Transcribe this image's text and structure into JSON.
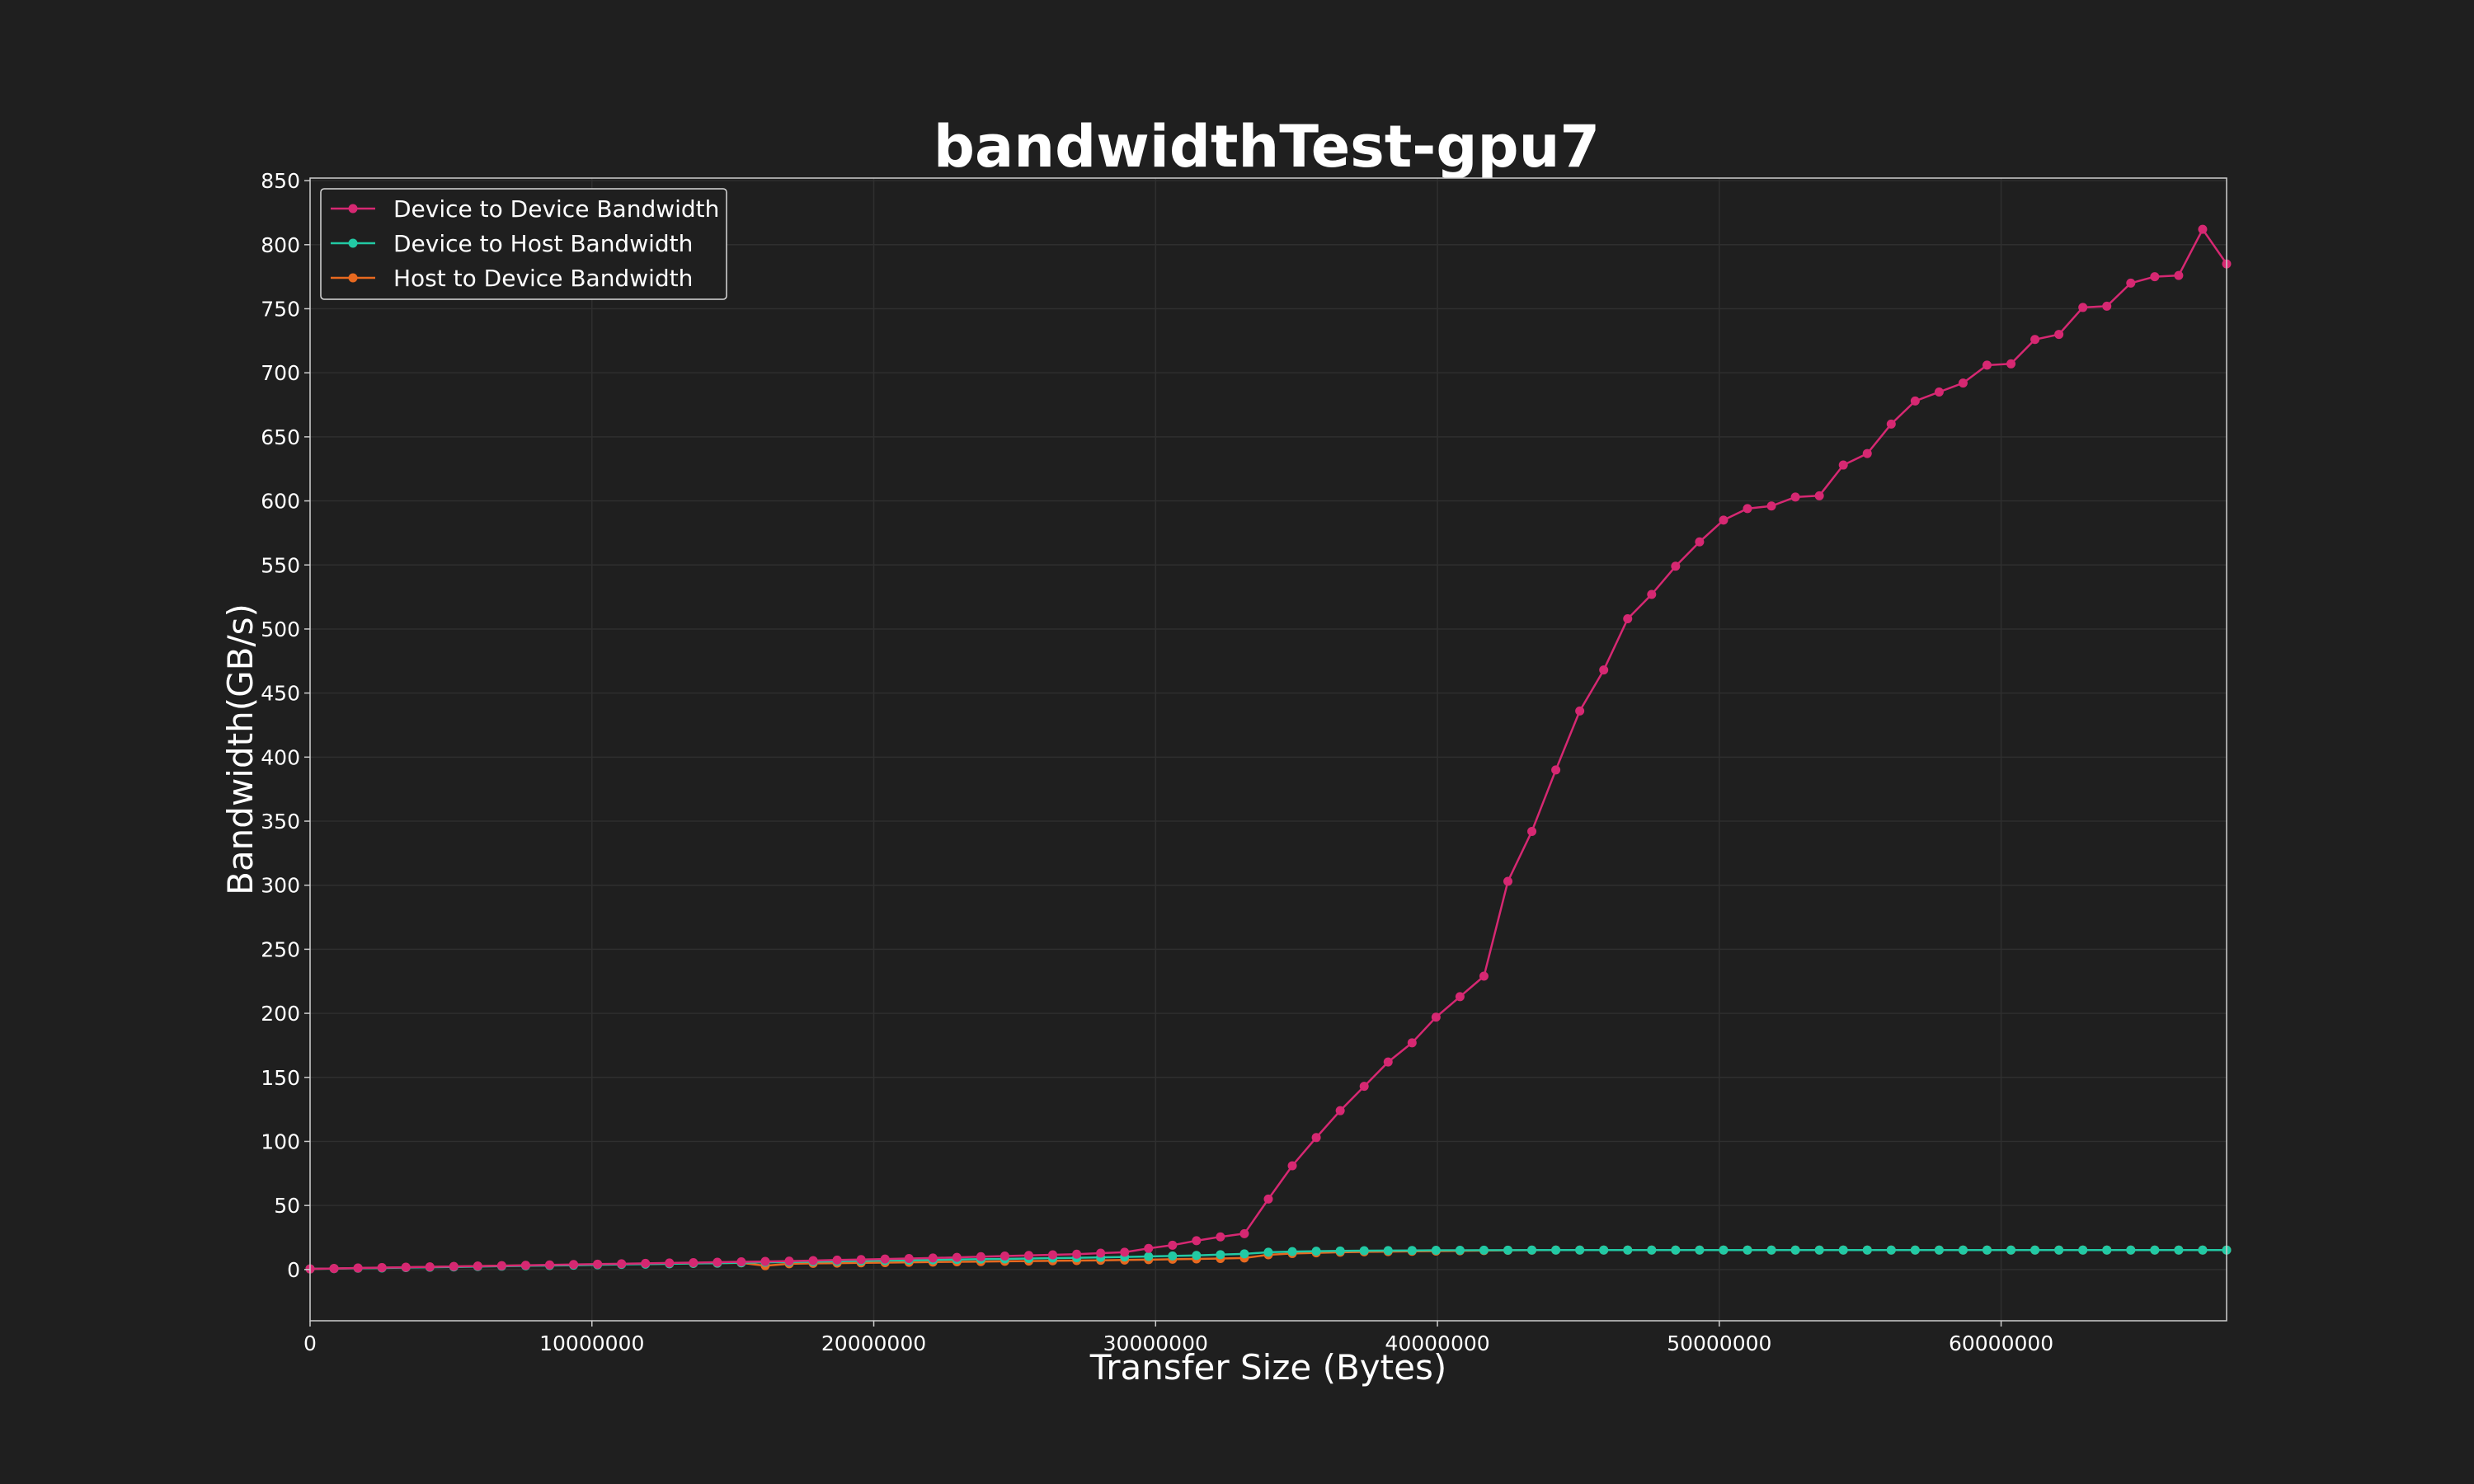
{
  "chart_data": {
    "type": "line",
    "title": "bandwidthTest-gpu7",
    "xlabel": "Transfer Size (Bytes)",
    "ylabel": "Bandwidth(GB/s)",
    "xlim": [
      0,
      68000000
    ],
    "ylim": [
      -40,
      852
    ],
    "x_ticks": [
      0,
      10000000,
      20000000,
      30000000,
      40000000,
      50000000,
      60000000
    ],
    "x_tick_labels": [
      "0",
      "10000000",
      "20000000",
      "30000000",
      "40000000",
      "50000000",
      "60000000"
    ],
    "y_ticks": [
      0,
      50,
      100,
      150,
      200,
      250,
      300,
      350,
      400,
      450,
      500,
      550,
      600,
      650,
      700,
      750,
      800,
      850
    ],
    "y_tick_labels": [
      "0",
      "50",
      "100",
      "150",
      "200",
      "250",
      "300",
      "350",
      "400",
      "450",
      "500",
      "550",
      "600",
      "650",
      "700",
      "750",
      "800",
      "850"
    ],
    "grid": true,
    "legend_position": "top-left",
    "x": [
      0,
      850000,
      1700000,
      2550000,
      3400000,
      4250000,
      5100000,
      5950000,
      6800000,
      7650000,
      8500000,
      9350000,
      10200000,
      11050000,
      11900000,
      12750000,
      13600000,
      14450000,
      15300000,
      16150000,
      17000000,
      17850000,
      18700000,
      19550000,
      20400000,
      21250000,
      22100000,
      22950000,
      23800000,
      24650000,
      25500000,
      26350000,
      27200000,
      28050000,
      28900000,
      29750000,
      30600000,
      31450000,
      32300000,
      33150000,
      34000000,
      34850000,
      35700000,
      36550000,
      37400000,
      38250000,
      39100000,
      39950000,
      40800000,
      41650000,
      42500000,
      43350000,
      44200000,
      45050000,
      45900000,
      46750000,
      47600000,
      48450000,
      49300000,
      50150000,
      51000000,
      51850000,
      52700000,
      53550000,
      54400000,
      55250000,
      56100000,
      56950000,
      57800000,
      58650000,
      59500000,
      60350000,
      61200000,
      62050000,
      62900000,
      63750000,
      64600000,
      65450000,
      66300000,
      67150000,
      68000000
    ],
    "series": [
      {
        "name": "Device to Device Bandwidth",
        "color": "#d62872",
        "values": [
          0.5,
          0.8,
          1.2,
          1.5,
          1.8,
          2.1,
          2.4,
          2.7,
          3.0,
          3.3,
          3.6,
          3.9,
          4.2,
          4.5,
          4.8,
          5.1,
          5.4,
          5.7,
          6.0,
          6.3,
          6.6,
          7.0,
          7.4,
          7.8,
          8.2,
          8.6,
          9.0,
          9.5,
          10.0,
          10.5,
          11.0,
          11.5,
          12.0,
          12.8,
          13.5,
          16.5,
          19.0,
          22.5,
          25.5,
          28.0,
          55.0,
          81.0,
          103.0,
          124.0,
          143.0,
          162.0,
          177.0,
          197.0,
          213.0,
          229.0,
          303.0,
          342.0,
          390.0,
          436.0,
          468.0,
          508.0,
          527.0,
          549.0,
          568.0,
          585.0,
          594.0,
          596.0,
          603.0,
          604.0,
          628.0,
          637.0,
          660.0,
          678.0,
          685.0,
          692.0,
          706.0,
          707.0,
          726.0,
          730.0,
          751.0,
          752.0,
          770.0,
          775.0,
          776.0,
          812.0,
          785.0
        ]
      },
      {
        "name": "Device to Host Bandwidth",
        "color": "#22c9a4",
        "values": [
          0.5,
          0.7,
          1.0,
          1.2,
          1.5,
          1.8,
          2.0,
          2.3,
          2.6,
          2.9,
          3.1,
          3.4,
          3.7,
          4.0,
          4.2,
          4.5,
          4.8,
          5.0,
          5.3,
          5.6,
          5.9,
          6.1,
          6.4,
          6.7,
          7.0,
          7.2,
          7.5,
          7.8,
          8.1,
          8.3,
          8.6,
          8.9,
          9.2,
          9.5,
          9.8,
          10.2,
          10.6,
          11.0,
          11.6,
          12.2,
          13.5,
          14.0,
          14.3,
          14.5,
          14.7,
          14.8,
          14.9,
          15.0,
          15.0,
          15.1,
          15.1,
          15.2,
          15.2,
          15.2,
          15.2,
          15.2,
          15.2,
          15.2,
          15.2,
          15.2,
          15.2,
          15.2,
          15.2,
          15.2,
          15.2,
          15.2,
          15.2,
          15.2,
          15.2,
          15.2,
          15.2,
          15.2,
          15.2,
          15.2,
          15.2,
          15.2,
          15.2,
          15.2,
          15.2,
          15.2,
          15.2
        ]
      },
      {
        "name": "Host to Device Bandwidth",
        "color": "#e8691f",
        "values": [
          0.5,
          0.8,
          1.1,
          1.4,
          1.7,
          2.0,
          2.3,
          2.6,
          2.9,
          3.2,
          3.4,
          3.7,
          4.0,
          4.2,
          4.4,
          4.6,
          4.8,
          5.0,
          5.2,
          3.0,
          4.5,
          4.8,
          5.0,
          5.2,
          5.4,
          5.6,
          5.8,
          6.0,
          6.2,
          6.4,
          6.6,
          6.8,
          7.0,
          7.2,
          7.4,
          7.7,
          8.0,
          8.3,
          8.6,
          9.0,
          11.5,
          12.5,
          13.0,
          13.5,
          13.8,
          14.0,
          14.2,
          14.4,
          14.6,
          14.8,
          15.0,
          15.1,
          15.2,
          15.2,
          15.2,
          15.2,
          15.2,
          15.2,
          15.2,
          15.2,
          15.2,
          15.2,
          15.2,
          15.2,
          15.2,
          15.2,
          15.2,
          15.2,
          15.2,
          15.2,
          15.2,
          15.2,
          15.2,
          15.2,
          15.2,
          15.2,
          15.2,
          15.2,
          15.2,
          15.2,
          15.2
        ]
      }
    ]
  }
}
